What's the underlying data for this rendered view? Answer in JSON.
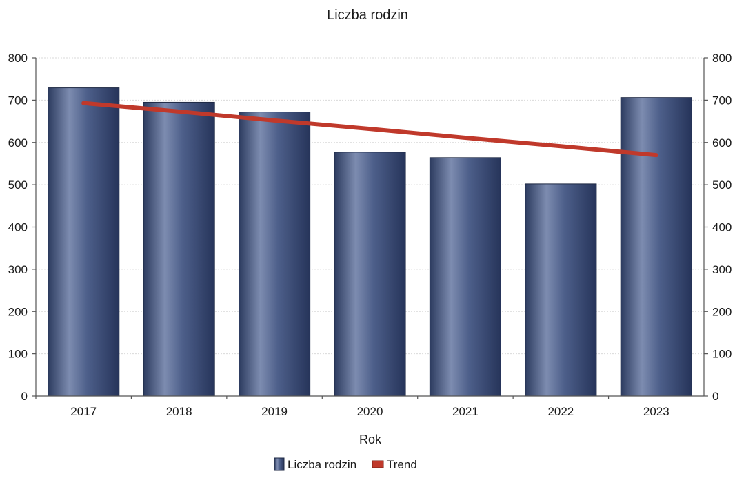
{
  "chart_data": {
    "type": "bar",
    "title": "Liczba rodzin",
    "xlabel": "Rok",
    "ylabel": "",
    "categories": [
      "2017",
      "2018",
      "2019",
      "2020",
      "2021",
      "2022",
      "2023"
    ],
    "series": [
      {
        "name": "Liczba rodzin",
        "type": "bar",
        "color": "#3d4f7a",
        "values": [
          729,
          695,
          672,
          577,
          564,
          502,
          706
        ]
      },
      {
        "name": "Trend",
        "type": "line",
        "color": "#c0392b",
        "values": [
          693,
          673,
          652,
          632,
          611,
          591,
          570
        ]
      }
    ],
    "ylim": [
      0,
      800
    ],
    "yticks": [
      0,
      100,
      200,
      300,
      400,
      500,
      600,
      700,
      800
    ],
    "secondary_y_axis": true,
    "grid": true,
    "legend_position": "bottom"
  }
}
